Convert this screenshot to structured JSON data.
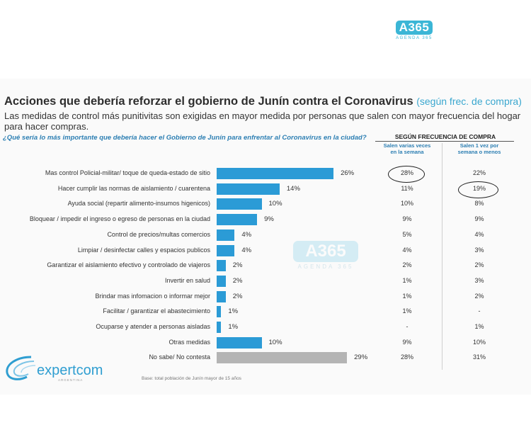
{
  "logo": {
    "brand": "A365",
    "tagline": "AGENDA 365"
  },
  "header": {
    "title": "Acciones que debería reforzar el gobierno de Junín contra el Coronavirus",
    "title_note": "(según frec. de compra)",
    "subtitle": "Las medidas de control más punitivitas son exigidas en mayor medida por personas que salen con mayor frecuencia del hogar para hacer compras.",
    "question": "¿Qué sería lo más importante que debería hacer el Gobierno de Junín para enfrentar al Coronavirus en la ciudad?"
  },
  "table": {
    "group_header": "SEGÚN FRECUENCIA DE COMPRA",
    "col1_header": "Salen varias veces en la semana",
    "col2_header": "Salen 1 vez por semana o menos"
  },
  "chart_data": {
    "type": "bar",
    "orientation": "horizontal",
    "categories": [
      "Mas control Policial-militar/ toque de queda-estado de sitio",
      "Hacer cumplir las normas de aislamiento / cuarentena",
      "Ayuda social (repartir alimento-insumos higenicos)",
      "Bloquear / impedir el ingreso o egreso de personas en la ciudad",
      "Control de precios/multas comercios",
      "Limpiar / desinfectar calles y espacios publicos",
      "Garantizar el aislamiento efectivo y controlado de viajeros",
      "Invertir en salud",
      "Brindar mas infomacion o informar mejor",
      "Facilitar / garantizar el abastecimiento",
      "Ocuparse y atender a personas aisladas",
      "Otras medidas",
      "No sabe/ No contesta"
    ],
    "values": [
      26,
      14,
      10,
      9,
      4,
      4,
      2,
      2,
      2,
      1,
      1,
      10,
      29
    ],
    "value_labels": [
      "26%",
      "14%",
      "10%",
      "9%",
      "4%",
      "4%",
      "2%",
      "2%",
      "2%",
      "1%",
      "1%",
      "10%",
      "29%"
    ],
    "highlight_gray": [
      false,
      false,
      false,
      false,
      false,
      false,
      false,
      false,
      false,
      false,
      false,
      false,
      true
    ],
    "series": [
      {
        "name": "Salen varias veces en la semana",
        "values": [
          "28%",
          "11%",
          "10%",
          "9%",
          "5%",
          "4%",
          "2%",
          "1%",
          "1%",
          "1%",
          "-",
          "9%",
          "28%"
        ]
      },
      {
        "name": "Salen 1 vez por semana o menos",
        "values": [
          "22%",
          "19%",
          "8%",
          "9%",
          "4%",
          "3%",
          "2%",
          "3%",
          "2%",
          "-",
          "1%",
          "10%",
          "31%"
        ]
      }
    ],
    "bar_color": "#2b9bd6",
    "nsnc_color": "#b4b4b4"
  },
  "watermark": {
    "brand": "A365",
    "tagline": "AGENDA 365"
  },
  "footer": {
    "company": "expertcom",
    "company_country": "ARGENTINA",
    "base_note": "Base: total población de Junín mayor de 15 años"
  }
}
